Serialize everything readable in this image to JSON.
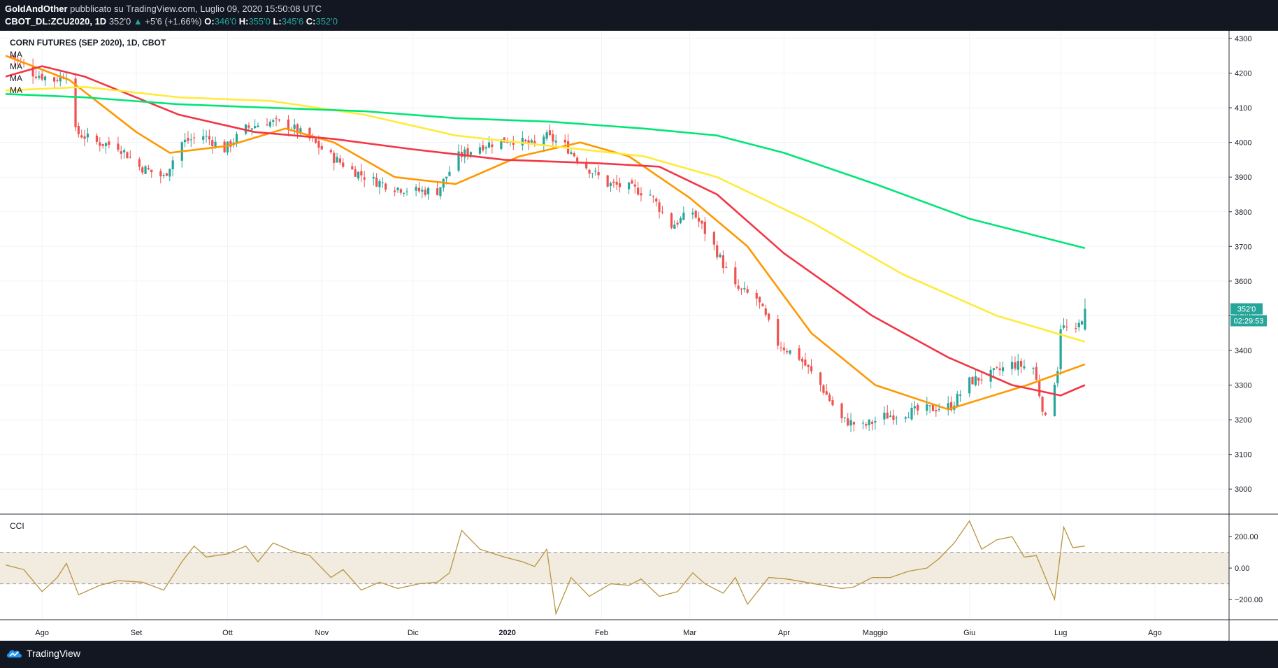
{
  "header": {
    "author": "GoldAndOther",
    "published": "pubblicato su TradingView.com, Luglio 09, 2020 15:50:08 UTC",
    "symbol": "CBOT_DL:ZCU2020, 1D",
    "last": "352'0",
    "change_arrow": "▲",
    "change": "+5'6 (+1.66%)",
    "o_label": "O:",
    "o": "346'0",
    "h_label": "H:",
    "h": "355'0",
    "l_label": "L:",
    "l": "345'6",
    "c_label": "C:",
    "c": "352'0"
  },
  "chart_title": "CORN FUTURES (SEP 2020), 1D, CBOT",
  "ma_labels": [
    "MA",
    "MA",
    "MA",
    "MA"
  ],
  "cci_label": "CCI",
  "price_badge": "352'0",
  "countdown_badge": "02:29:53",
  "footer": {
    "brand": "TradingView",
    "logo_icon": "tradingview-cloud-icon"
  },
  "colors": {
    "up": "#26a69a",
    "down": "#ef5350",
    "ma_orange": "#ff9800",
    "ma_red": "#f23645",
    "ma_yellow": "#ffeb3b",
    "ma_green": "#00e676",
    "cci_line": "#b8953f",
    "cci_band": "#f2ebe0"
  },
  "chart_data": {
    "type": "candlestick",
    "price_axis": {
      "min": 2950,
      "max": 4310,
      "ticks": [
        4300,
        4200,
        4100,
        4000,
        3900,
        3800,
        3700,
        3600,
        3500,
        3400,
        3300,
        3200,
        3100,
        3000
      ],
      "tick_labels": [
        "4300",
        "4200",
        "4100",
        "4000",
        "3900",
        "3800",
        "3700",
        "3600",
        "3500",
        "3400",
        "3300",
        "3200",
        "3100",
        "3000"
      ]
    },
    "x_axis": {
      "start": "2019-07-20",
      "end": "2020-08-24",
      "ticks": [
        {
          "date": "2019-08-01",
          "label": "Ago"
        },
        {
          "date": "2019-09-01",
          "label": "Set"
        },
        {
          "date": "2019-10-01",
          "label": "Ott"
        },
        {
          "date": "2019-11-01",
          "label": "Nov"
        },
        {
          "date": "2019-12-01",
          "label": "Dic"
        },
        {
          "date": "2020-01-01",
          "label": "2020"
        },
        {
          "date": "2020-02-01",
          "label": "Feb"
        },
        {
          "date": "2020-03-01",
          "label": "Mar"
        },
        {
          "date": "2020-04-01",
          "label": "Apr"
        },
        {
          "date": "2020-05-01",
          "label": "Maggio"
        },
        {
          "date": "2020-06-01",
          "label": "Giu"
        },
        {
          "date": "2020-07-01",
          "label": "Lug"
        },
        {
          "date": "2020-08-01",
          "label": "Ago"
        }
      ]
    },
    "close_anchors": [
      [
        "2019-07-22",
        4250
      ],
      [
        "2019-07-29",
        4200
      ],
      [
        "2019-08-05",
        4180
      ],
      [
        "2019-08-09",
        4200
      ],
      [
        "2019-08-12",
        4030
      ],
      [
        "2019-08-19",
        4000
      ],
      [
        "2019-08-26",
        3990
      ],
      [
        "2019-09-02",
        3930
      ],
      [
        "2019-09-10",
        3900
      ],
      [
        "2019-09-16",
        4000
      ],
      [
        "2019-09-23",
        4020
      ],
      [
        "2019-09-30",
        3980
      ],
      [
        "2019-10-07",
        4040
      ],
      [
        "2019-10-14",
        4060
      ],
      [
        "2019-10-21",
        4050
      ],
      [
        "2019-10-28",
        4010
      ],
      [
        "2019-11-04",
        3960
      ],
      [
        "2019-11-11",
        3920
      ],
      [
        "2019-11-18",
        3890
      ],
      [
        "2019-11-25",
        3870
      ],
      [
        "2019-12-02",
        3860
      ],
      [
        "2019-12-09",
        3860
      ],
      [
        "2019-12-16",
        3960
      ],
      [
        "2019-12-23",
        3990
      ],
      [
        "2020-01-02",
        4010
      ],
      [
        "2020-01-10",
        3990
      ],
      [
        "2020-01-13",
        4020
      ],
      [
        "2020-01-20",
        3990
      ],
      [
        "2020-01-27",
        3930
      ],
      [
        "2020-02-03",
        3880
      ],
      [
        "2020-02-10",
        3870
      ],
      [
        "2020-02-17",
        3850
      ],
      [
        "2020-02-24",
        3760
      ],
      [
        "2020-03-02",
        3800
      ],
      [
        "2020-03-09",
        3700
      ],
      [
        "2020-03-16",
        3580
      ],
      [
        "2020-03-23",
        3550
      ],
      [
        "2020-03-30",
        3420
      ],
      [
        "2020-04-06",
        3380
      ],
      [
        "2020-04-13",
        3300
      ],
      [
        "2020-04-20",
        3200
      ],
      [
        "2020-04-27",
        3180
      ],
      [
        "2020-05-04",
        3210
      ],
      [
        "2020-05-11",
        3220
      ],
      [
        "2020-05-18",
        3230
      ],
      [
        "2020-05-26",
        3240
      ],
      [
        "2020-06-01",
        3310
      ],
      [
        "2020-06-08",
        3330
      ],
      [
        "2020-06-15",
        3360
      ],
      [
        "2020-06-22",
        3350
      ],
      [
        "2020-06-26",
        3200
      ],
      [
        "2020-06-30",
        3350
      ],
      [
        "2020-07-01",
        3470
      ],
      [
        "2020-07-06",
        3450
      ],
      [
        "2020-07-09",
        3520
      ]
    ],
    "last_candle": {
      "date": "2020-07-09",
      "open": 3460,
      "high": 3550,
      "low": 3457,
      "close": 3520
    },
    "moving_averages": [
      {
        "color": "#ff9800",
        "points": [
          [
            "2019-07-20",
            4250
          ],
          [
            "2019-08-10",
            4180
          ],
          [
            "2019-09-01",
            4030
          ],
          [
            "2019-09-12",
            3970
          ],
          [
            "2019-10-01",
            3990
          ],
          [
            "2019-10-20",
            4040
          ],
          [
            "2019-11-05",
            4000
          ],
          [
            "2019-11-25",
            3900
          ],
          [
            "2019-12-15",
            3880
          ],
          [
            "2020-01-05",
            3960
          ],
          [
            "2020-01-25",
            4000
          ],
          [
            "2020-02-10",
            3960
          ],
          [
            "2020-03-01",
            3840
          ],
          [
            "2020-03-20",
            3700
          ],
          [
            "2020-04-10",
            3450
          ],
          [
            "2020-05-01",
            3300
          ],
          [
            "2020-05-25",
            3230
          ],
          [
            "2020-06-20",
            3300
          ],
          [
            "2020-07-09",
            3360
          ]
        ]
      },
      {
        "color": "#f23645",
        "points": [
          [
            "2019-07-20",
            4190
          ],
          [
            "2019-08-01",
            4220
          ],
          [
            "2019-08-15",
            4190
          ],
          [
            "2019-09-15",
            4080
          ],
          [
            "2019-10-10",
            4030
          ],
          [
            "2019-11-05",
            4010
          ],
          [
            "2019-12-01",
            3980
          ],
          [
            "2019-12-31",
            3950
          ],
          [
            "2020-01-31",
            3940
          ],
          [
            "2020-02-20",
            3930
          ],
          [
            "2020-03-10",
            3850
          ],
          [
            "2020-04-01",
            3680
          ],
          [
            "2020-04-30",
            3500
          ],
          [
            "2020-05-25",
            3380
          ],
          [
            "2020-06-15",
            3300
          ],
          [
            "2020-07-01",
            3270
          ],
          [
            "2020-07-09",
            3300
          ]
        ]
      },
      {
        "color": "#ffeb3b",
        "points": [
          [
            "2019-07-20",
            4150
          ],
          [
            "2019-08-15",
            4160
          ],
          [
            "2019-09-15",
            4130
          ],
          [
            "2019-10-15",
            4120
          ],
          [
            "2019-11-15",
            4080
          ],
          [
            "2019-12-15",
            4020
          ],
          [
            "2020-01-15",
            3990
          ],
          [
            "2020-02-15",
            3960
          ],
          [
            "2020-03-10",
            3900
          ],
          [
            "2020-04-10",
            3770
          ],
          [
            "2020-05-10",
            3620
          ],
          [
            "2020-06-10",
            3500
          ],
          [
            "2020-07-09",
            3425
          ]
        ]
      },
      {
        "color": "#00e676",
        "points": [
          [
            "2019-07-20",
            4140
          ],
          [
            "2019-08-15",
            4130
          ],
          [
            "2019-09-15",
            4110
          ],
          [
            "2019-10-15",
            4100
          ],
          [
            "2019-11-15",
            4090
          ],
          [
            "2019-12-15",
            4070
          ],
          [
            "2020-01-15",
            4060
          ],
          [
            "2020-02-15",
            4040
          ],
          [
            "2020-03-10",
            4020
          ],
          [
            "2020-04-01",
            3970
          ],
          [
            "2020-05-01",
            3880
          ],
          [
            "2020-06-01",
            3780
          ],
          [
            "2020-07-09",
            3695
          ]
        ]
      }
    ],
    "cci": {
      "axis": {
        "min": -320,
        "max": 330,
        "ticks": [
          200,
          0,
          -200
        ],
        "tick_labels": [
          "200.00",
          "0.00",
          "−200.00"
        ]
      },
      "band": [
        100,
        -100
      ],
      "points": [
        [
          "2019-07-20",
          20
        ],
        [
          "2019-07-26",
          -10
        ],
        [
          "2019-08-01",
          -150
        ],
        [
          "2019-08-06",
          -60
        ],
        [
          "2019-08-09",
          30
        ],
        [
          "2019-08-13",
          -170
        ],
        [
          "2019-08-20",
          -110
        ],
        [
          "2019-08-26",
          -80
        ],
        [
          "2019-09-03",
          -90
        ],
        [
          "2019-09-10",
          -140
        ],
        [
          "2019-09-16",
          40
        ],
        [
          "2019-09-20",
          140
        ],
        [
          "2019-09-24",
          70
        ],
        [
          "2019-10-01",
          90
        ],
        [
          "2019-10-07",
          140
        ],
        [
          "2019-10-11",
          40
        ],
        [
          "2019-10-16",
          160
        ],
        [
          "2019-10-22",
          110
        ],
        [
          "2019-10-28",
          80
        ],
        [
          "2019-11-04",
          -60
        ],
        [
          "2019-11-08",
          -10
        ],
        [
          "2019-11-14",
          -140
        ],
        [
          "2019-11-20",
          -90
        ],
        [
          "2019-11-26",
          -130
        ],
        [
          "2019-12-03",
          -100
        ],
        [
          "2019-12-09",
          -90
        ],
        [
          "2019-12-13",
          -30
        ],
        [
          "2019-12-17",
          240
        ],
        [
          "2019-12-23",
          120
        ],
        [
          "2019-12-31",
          70
        ],
        [
          "2020-01-06",
          40
        ],
        [
          "2020-01-10",
          10
        ],
        [
          "2020-01-14",
          120
        ],
        [
          "2020-01-17",
          -290
        ],
        [
          "2020-01-22",
          -60
        ],
        [
          "2020-01-28",
          -180
        ],
        [
          "2020-02-04",
          -100
        ],
        [
          "2020-02-10",
          -110
        ],
        [
          "2020-02-14",
          -70
        ],
        [
          "2020-02-20",
          -180
        ],
        [
          "2020-02-26",
          -150
        ],
        [
          "2020-03-02",
          -30
        ],
        [
          "2020-03-06",
          -100
        ],
        [
          "2020-03-12",
          -160
        ],
        [
          "2020-03-16",
          -60
        ],
        [
          "2020-03-20",
          -230
        ],
        [
          "2020-03-27",
          -60
        ],
        [
          "2020-04-02",
          -70
        ],
        [
          "2020-04-08",
          -90
        ],
        [
          "2020-04-14",
          -110
        ],
        [
          "2020-04-20",
          -130
        ],
        [
          "2020-04-24",
          -120
        ],
        [
          "2020-04-30",
          -60
        ],
        [
          "2020-05-06",
          -60
        ],
        [
          "2020-05-12",
          -20
        ],
        [
          "2020-05-18",
          0
        ],
        [
          "2020-05-22",
          60
        ],
        [
          "2020-05-27",
          160
        ],
        [
          "2020-06-01",
          300
        ],
        [
          "2020-06-05",
          120
        ],
        [
          "2020-06-10",
          180
        ],
        [
          "2020-06-15",
          200
        ],
        [
          "2020-06-19",
          70
        ],
        [
          "2020-06-23",
          80
        ],
        [
          "2020-06-26",
          -60
        ],
        [
          "2020-06-29",
          -200
        ],
        [
          "2020-07-02",
          260
        ],
        [
          "2020-07-05",
          130
        ],
        [
          "2020-07-09",
          140
        ]
      ]
    }
  }
}
